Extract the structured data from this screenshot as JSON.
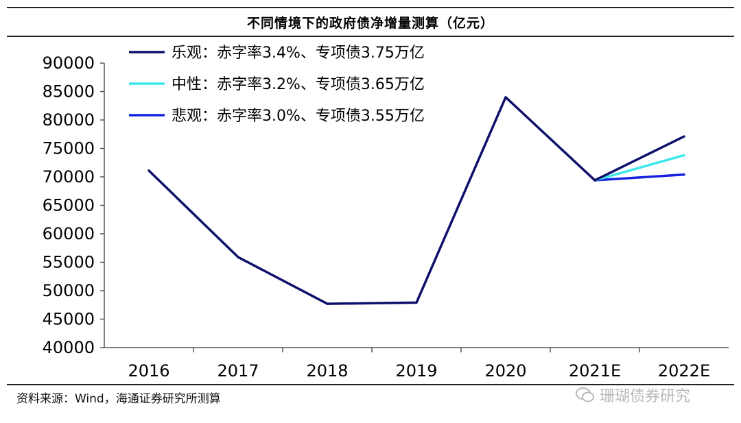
{
  "title": "不同情境下的政府债净增量测算（亿元）",
  "source": "资料来源：Wind，海通证券研究所测算",
  "watermark": "珊瑚债券研究",
  "chart_data": {
    "type": "line",
    "title": "不同情境下的政府债净增量测算（亿元）",
    "xlabel": "",
    "ylabel": "",
    "categories": [
      "2016",
      "2017",
      "2018",
      "2019",
      "2020",
      "2021E",
      "2022E"
    ],
    "ylim": [
      40000,
      90000
    ],
    "yticks": [
      40000,
      45000,
      50000,
      55000,
      60000,
      65000,
      70000,
      75000,
      80000,
      85000,
      90000
    ],
    "grid": false,
    "legend_position": "top-left",
    "series": [
      {
        "name": "乐观：赤字率3.4%、专项债3.75万亿",
        "color": "#0d0f6b",
        "values": [
          71100,
          55900,
          47700,
          47900,
          84000,
          69400,
          77100
        ]
      },
      {
        "name": "中性：赤字率3.2%、专项债3.65万亿",
        "color": "#3ee6ee",
        "values": [
          null,
          null,
          null,
          null,
          null,
          69400,
          73800
        ]
      },
      {
        "name": "悲观：赤字率3.0%、专项债3.55万亿",
        "color": "#1522e0",
        "values": [
          null,
          null,
          null,
          null,
          null,
          69400,
          70400
        ]
      }
    ]
  }
}
